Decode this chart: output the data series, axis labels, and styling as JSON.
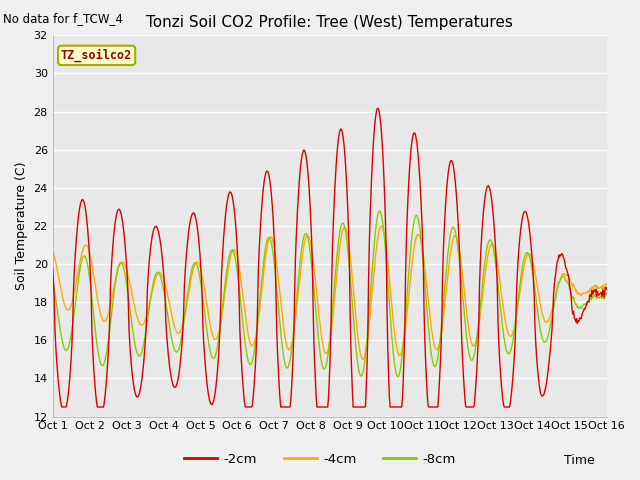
{
  "title": "Tonzi Soil CO2 Profile: Tree (West) Temperatures",
  "subtitle": "No data for f_TCW_4",
  "xlabel": "Time",
  "ylabel": "Soil Temperature (C)",
  "ylim": [
    12,
    32
  ],
  "yticks": [
    12,
    14,
    16,
    18,
    20,
    22,
    24,
    26,
    28,
    30,
    32
  ],
  "x_labels": [
    "Oct 1",
    "Oct 2",
    "Oct 3",
    "Oct 4",
    "Oct 5",
    "Oct 6",
    "Oct 7",
    "Oct 8",
    "Oct 9",
    "Oct 10",
    "Oct 11",
    "Oct 12",
    "Oct 13",
    "Oct 14",
    "Oct 15",
    "Oct 16"
  ],
  "colors": {
    "-2cm": "#dd0000",
    "-4cm": "#ffaa00",
    "-8cm": "#88cc00"
  },
  "legend_label": "TZ_soilco2",
  "fig_bg": "#f0f0f0",
  "plot_bg": "#e8e8e8",
  "grid_color": "#ffffff",
  "n_days": 15,
  "pts_per_day": 48
}
